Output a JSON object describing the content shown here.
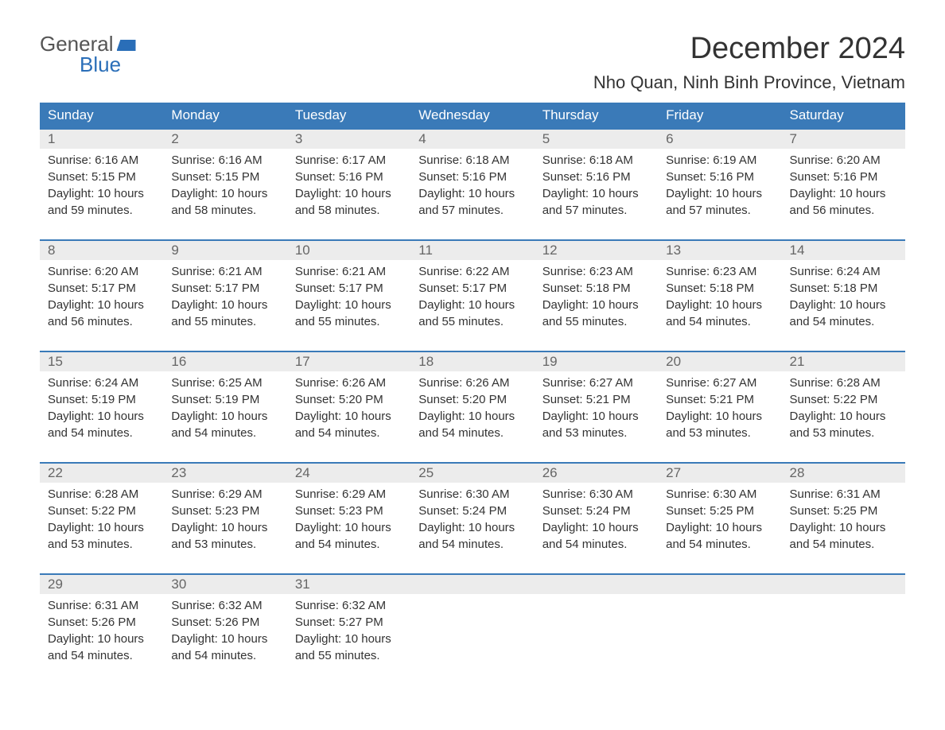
{
  "logo": {
    "text_general": "General",
    "text_blue": "Blue"
  },
  "header": {
    "month_title": "December 2024",
    "location": "Nho Quan, Ninh Binh Province, Vietnam"
  },
  "colors": {
    "header_bg": "#3a7ab8",
    "header_text": "#ffffff",
    "day_num_bg": "#ececec",
    "day_num_text": "#666666",
    "body_text": "#333333",
    "logo_blue": "#2a6eb8",
    "logo_gray": "#555555"
  },
  "day_headers": [
    "Sunday",
    "Monday",
    "Tuesday",
    "Wednesday",
    "Thursday",
    "Friday",
    "Saturday"
  ],
  "weeks": [
    {
      "days": [
        {
          "num": "1",
          "sunrise": "Sunrise: 6:16 AM",
          "sunset": "Sunset: 5:15 PM",
          "daylight1": "Daylight: 10 hours",
          "daylight2": "and 59 minutes."
        },
        {
          "num": "2",
          "sunrise": "Sunrise: 6:16 AM",
          "sunset": "Sunset: 5:15 PM",
          "daylight1": "Daylight: 10 hours",
          "daylight2": "and 58 minutes."
        },
        {
          "num": "3",
          "sunrise": "Sunrise: 6:17 AM",
          "sunset": "Sunset: 5:16 PM",
          "daylight1": "Daylight: 10 hours",
          "daylight2": "and 58 minutes."
        },
        {
          "num": "4",
          "sunrise": "Sunrise: 6:18 AM",
          "sunset": "Sunset: 5:16 PM",
          "daylight1": "Daylight: 10 hours",
          "daylight2": "and 57 minutes."
        },
        {
          "num": "5",
          "sunrise": "Sunrise: 6:18 AM",
          "sunset": "Sunset: 5:16 PM",
          "daylight1": "Daylight: 10 hours",
          "daylight2": "and 57 minutes."
        },
        {
          "num": "6",
          "sunrise": "Sunrise: 6:19 AM",
          "sunset": "Sunset: 5:16 PM",
          "daylight1": "Daylight: 10 hours",
          "daylight2": "and 57 minutes."
        },
        {
          "num": "7",
          "sunrise": "Sunrise: 6:20 AM",
          "sunset": "Sunset: 5:16 PM",
          "daylight1": "Daylight: 10 hours",
          "daylight2": "and 56 minutes."
        }
      ]
    },
    {
      "days": [
        {
          "num": "8",
          "sunrise": "Sunrise: 6:20 AM",
          "sunset": "Sunset: 5:17 PM",
          "daylight1": "Daylight: 10 hours",
          "daylight2": "and 56 minutes."
        },
        {
          "num": "9",
          "sunrise": "Sunrise: 6:21 AM",
          "sunset": "Sunset: 5:17 PM",
          "daylight1": "Daylight: 10 hours",
          "daylight2": "and 55 minutes."
        },
        {
          "num": "10",
          "sunrise": "Sunrise: 6:21 AM",
          "sunset": "Sunset: 5:17 PM",
          "daylight1": "Daylight: 10 hours",
          "daylight2": "and 55 minutes."
        },
        {
          "num": "11",
          "sunrise": "Sunrise: 6:22 AM",
          "sunset": "Sunset: 5:17 PM",
          "daylight1": "Daylight: 10 hours",
          "daylight2": "and 55 minutes."
        },
        {
          "num": "12",
          "sunrise": "Sunrise: 6:23 AM",
          "sunset": "Sunset: 5:18 PM",
          "daylight1": "Daylight: 10 hours",
          "daylight2": "and 55 minutes."
        },
        {
          "num": "13",
          "sunrise": "Sunrise: 6:23 AM",
          "sunset": "Sunset: 5:18 PM",
          "daylight1": "Daylight: 10 hours",
          "daylight2": "and 54 minutes."
        },
        {
          "num": "14",
          "sunrise": "Sunrise: 6:24 AM",
          "sunset": "Sunset: 5:18 PM",
          "daylight1": "Daylight: 10 hours",
          "daylight2": "and 54 minutes."
        }
      ]
    },
    {
      "days": [
        {
          "num": "15",
          "sunrise": "Sunrise: 6:24 AM",
          "sunset": "Sunset: 5:19 PM",
          "daylight1": "Daylight: 10 hours",
          "daylight2": "and 54 minutes."
        },
        {
          "num": "16",
          "sunrise": "Sunrise: 6:25 AM",
          "sunset": "Sunset: 5:19 PM",
          "daylight1": "Daylight: 10 hours",
          "daylight2": "and 54 minutes."
        },
        {
          "num": "17",
          "sunrise": "Sunrise: 6:26 AM",
          "sunset": "Sunset: 5:20 PM",
          "daylight1": "Daylight: 10 hours",
          "daylight2": "and 54 minutes."
        },
        {
          "num": "18",
          "sunrise": "Sunrise: 6:26 AM",
          "sunset": "Sunset: 5:20 PM",
          "daylight1": "Daylight: 10 hours",
          "daylight2": "and 54 minutes."
        },
        {
          "num": "19",
          "sunrise": "Sunrise: 6:27 AM",
          "sunset": "Sunset: 5:21 PM",
          "daylight1": "Daylight: 10 hours",
          "daylight2": "and 53 minutes."
        },
        {
          "num": "20",
          "sunrise": "Sunrise: 6:27 AM",
          "sunset": "Sunset: 5:21 PM",
          "daylight1": "Daylight: 10 hours",
          "daylight2": "and 53 minutes."
        },
        {
          "num": "21",
          "sunrise": "Sunrise: 6:28 AM",
          "sunset": "Sunset: 5:22 PM",
          "daylight1": "Daylight: 10 hours",
          "daylight2": "and 53 minutes."
        }
      ]
    },
    {
      "days": [
        {
          "num": "22",
          "sunrise": "Sunrise: 6:28 AM",
          "sunset": "Sunset: 5:22 PM",
          "daylight1": "Daylight: 10 hours",
          "daylight2": "and 53 minutes."
        },
        {
          "num": "23",
          "sunrise": "Sunrise: 6:29 AM",
          "sunset": "Sunset: 5:23 PM",
          "daylight1": "Daylight: 10 hours",
          "daylight2": "and 53 minutes."
        },
        {
          "num": "24",
          "sunrise": "Sunrise: 6:29 AM",
          "sunset": "Sunset: 5:23 PM",
          "daylight1": "Daylight: 10 hours",
          "daylight2": "and 54 minutes."
        },
        {
          "num": "25",
          "sunrise": "Sunrise: 6:30 AM",
          "sunset": "Sunset: 5:24 PM",
          "daylight1": "Daylight: 10 hours",
          "daylight2": "and 54 minutes."
        },
        {
          "num": "26",
          "sunrise": "Sunrise: 6:30 AM",
          "sunset": "Sunset: 5:24 PM",
          "daylight1": "Daylight: 10 hours",
          "daylight2": "and 54 minutes."
        },
        {
          "num": "27",
          "sunrise": "Sunrise: 6:30 AM",
          "sunset": "Sunset: 5:25 PM",
          "daylight1": "Daylight: 10 hours",
          "daylight2": "and 54 minutes."
        },
        {
          "num": "28",
          "sunrise": "Sunrise: 6:31 AM",
          "sunset": "Sunset: 5:25 PM",
          "daylight1": "Daylight: 10 hours",
          "daylight2": "and 54 minutes."
        }
      ]
    },
    {
      "days": [
        {
          "num": "29",
          "sunrise": "Sunrise: 6:31 AM",
          "sunset": "Sunset: 5:26 PM",
          "daylight1": "Daylight: 10 hours",
          "daylight2": "and 54 minutes."
        },
        {
          "num": "30",
          "sunrise": "Sunrise: 6:32 AM",
          "sunset": "Sunset: 5:26 PM",
          "daylight1": "Daylight: 10 hours",
          "daylight2": "and 54 minutes."
        },
        {
          "num": "31",
          "sunrise": "Sunrise: 6:32 AM",
          "sunset": "Sunset: 5:27 PM",
          "daylight1": "Daylight: 10 hours",
          "daylight2": "and 55 minutes."
        },
        {
          "empty": true
        },
        {
          "empty": true
        },
        {
          "empty": true
        },
        {
          "empty": true
        }
      ]
    }
  ]
}
